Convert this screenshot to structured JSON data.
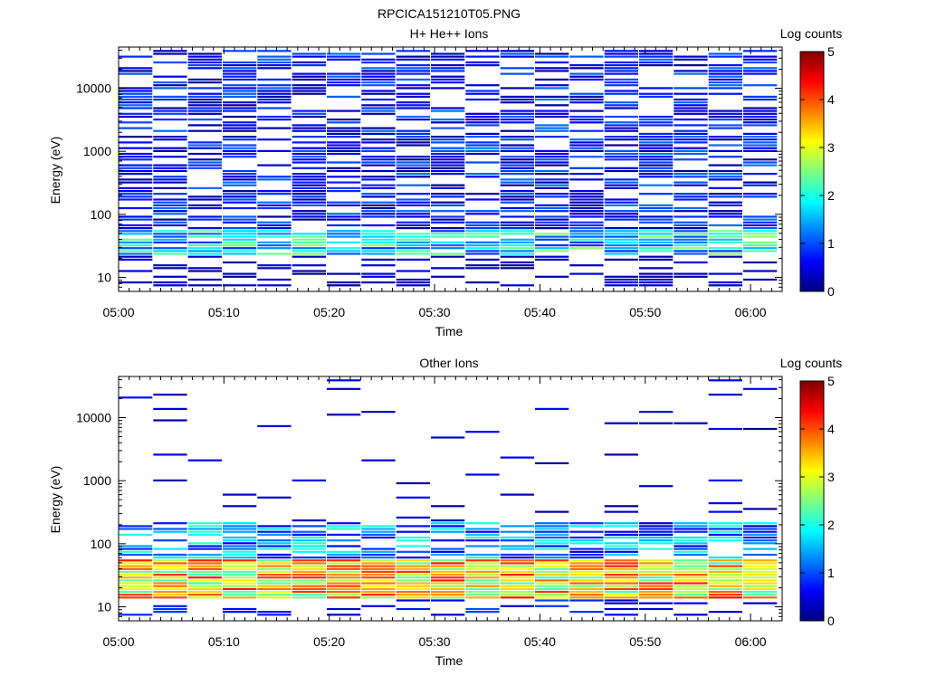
{
  "file_title": "RPCICA151210T05.PNG",
  "chart_data": [
    {
      "type": "heatmap",
      "title": "H+ He++ Ions",
      "xlabel": "Time",
      "ylabel": "Energy (eV)",
      "x_ticks": [
        "05:00",
        "05:10",
        "05:20",
        "05:30",
        "05:40",
        "05:50",
        "06:00"
      ],
      "x_range_minutes": [
        0,
        63
      ],
      "y_ticks": [
        "10",
        "100",
        "1000",
        "10000"
      ],
      "y_scale": "log",
      "y_range": [
        6,
        45000
      ],
      "colorbar": {
        "label": "Log counts",
        "ticks": [
          "0",
          "1",
          "2",
          "3",
          "4",
          "5"
        ],
        "range": [
          0,
          5
        ]
      },
      "channels_hint": "dense: levels mostly 0.2-1.2 above 100 eV, ~1.5-2.5 near 30-50 eV",
      "columns": 19
    },
    {
      "type": "heatmap",
      "title": "Other Ions",
      "xlabel": "Time",
      "ylabel": "Energy (eV)",
      "x_ticks": [
        "05:00",
        "05:10",
        "05:20",
        "05:30",
        "05:40",
        "05:50",
        "06:00"
      ],
      "x_range_minutes": [
        0,
        63
      ],
      "y_ticks": [
        "10",
        "100",
        "1000",
        "10000"
      ],
      "y_scale": "log",
      "y_range": [
        6,
        45000
      ],
      "colorbar": {
        "label": "Log counts",
        "ticks": [
          "0",
          "1",
          "2",
          "3",
          "4",
          "5"
        ],
        "range": [
          0,
          5
        ]
      },
      "channels_hint": "strong band 15-60 eV levels ~2.5-4.5; sparse high energy lines",
      "columns": 19
    }
  ],
  "colors": {
    "jet_stops": [
      "#00007f",
      "#0000ff",
      "#007fff",
      "#00ffff",
      "#7fff7f",
      "#ffff00",
      "#ff7f00",
      "#ff0000",
      "#7f0000"
    ]
  }
}
